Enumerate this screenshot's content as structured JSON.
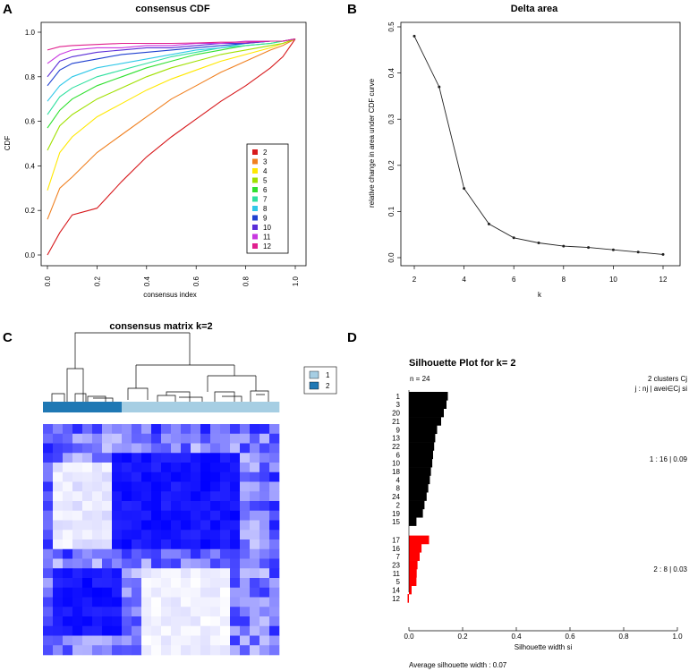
{
  "panels": {
    "A": {
      "label": "A",
      "chart_data": {
        "type": "line",
        "title": "consensus CDF",
        "xlabel": "consensus index",
        "ylabel": "CDF",
        "xlim": [
          0,
          1
        ],
        "ylim": [
          0,
          1
        ],
        "xticks": [
          "0.0",
          "0.2",
          "0.4",
          "0.6",
          "0.8",
          "1.0"
        ],
        "yticks": [
          "0.0",
          "0.2",
          "0.4",
          "0.6",
          "0.8",
          "1.0"
        ],
        "legend_position": "bottom-right",
        "x": [
          0,
          0.05,
          0.1,
          0.2,
          0.3,
          0.4,
          0.5,
          0.6,
          0.7,
          0.8,
          0.9,
          0.95,
          1.0
        ],
        "series": [
          {
            "name": "2",
            "color": "#d7191c",
            "values": [
              0.0,
              0.1,
              0.18,
              0.21,
              0.33,
              0.44,
              0.53,
              0.61,
              0.69,
              0.76,
              0.84,
              0.89,
              0.97
            ]
          },
          {
            "name": "3",
            "color": "#f08020",
            "values": [
              0.16,
              0.3,
              0.35,
              0.46,
              0.54,
              0.62,
              0.7,
              0.76,
              0.82,
              0.87,
              0.92,
              0.94,
              0.97
            ]
          },
          {
            "name": "4",
            "color": "#ffe800",
            "values": [
              0.29,
              0.46,
              0.53,
              0.62,
              0.68,
              0.74,
              0.79,
              0.83,
              0.87,
              0.9,
              0.93,
              0.95,
              0.97
            ]
          },
          {
            "name": "5",
            "color": "#a0e000",
            "values": [
              0.47,
              0.58,
              0.63,
              0.7,
              0.75,
              0.8,
              0.84,
              0.87,
              0.9,
              0.92,
              0.94,
              0.95,
              0.97
            ]
          },
          {
            "name": "6",
            "color": "#30e030",
            "values": [
              0.57,
              0.65,
              0.7,
              0.76,
              0.8,
              0.84,
              0.87,
              0.9,
              0.92,
              0.94,
              0.95,
              0.96,
              0.97
            ]
          },
          {
            "name": "7",
            "color": "#30e0a0",
            "values": [
              0.63,
              0.71,
              0.75,
              0.8,
              0.83,
              0.86,
              0.89,
              0.91,
              0.93,
              0.94,
              0.95,
              0.96,
              0.97
            ]
          },
          {
            "name": "8",
            "color": "#30c8e8",
            "values": [
              0.69,
              0.76,
              0.8,
              0.84,
              0.86,
              0.88,
              0.9,
              0.92,
              0.93,
              0.95,
              0.96,
              0.96,
              0.97
            ]
          },
          {
            "name": "9",
            "color": "#1f40d0",
            "values": [
              0.76,
              0.83,
              0.86,
              0.88,
              0.9,
              0.91,
              0.92,
              0.93,
              0.94,
              0.95,
              0.96,
              0.96,
              0.97
            ]
          },
          {
            "name": "10",
            "color": "#5a2ed8",
            "values": [
              0.8,
              0.87,
              0.89,
              0.91,
              0.92,
              0.93,
              0.93,
              0.94,
              0.95,
              0.95,
              0.96,
              0.96,
              0.97
            ]
          },
          {
            "name": "11",
            "color": "#c838e0",
            "values": [
              0.86,
              0.9,
              0.92,
              0.93,
              0.93,
              0.94,
              0.94,
              0.95,
              0.95,
              0.96,
              0.96,
              0.96,
              0.97
            ]
          },
          {
            "name": "12",
            "color": "#e0208e",
            "values": [
              0.92,
              0.935,
              0.94,
              0.945,
              0.95,
              0.95,
              0.95,
              0.952,
              0.955,
              0.955,
              0.96,
              0.96,
              0.97
            ]
          }
        ]
      }
    },
    "B": {
      "label": "B",
      "chart_data": {
        "type": "line",
        "title": "Delta area",
        "xlabel": "k",
        "ylabel": "relative change in area under CDF curve",
        "xlim": [
          2,
          12
        ],
        "ylim": [
          0,
          0.5
        ],
        "xticks": [
          "2",
          "4",
          "6",
          "8",
          "10",
          "12"
        ],
        "yticks": [
          "0.0",
          "0.1",
          "0.2",
          "0.3",
          "0.4",
          "0.5"
        ],
        "x": [
          2,
          3,
          4,
          5,
          6,
          7,
          8,
          9,
          10,
          11,
          12
        ],
        "values": [
          0.48,
          0.37,
          0.15,
          0.073,
          0.043,
          0.032,
          0.025,
          0.022,
          0.017,
          0.012,
          0.007
        ]
      }
    },
    "C": {
      "label": "C",
      "chart_data": {
        "type": "heatmap",
        "title": "consensus matrix k=2",
        "legend": [
          {
            "label": "1",
            "color": "#a6cee3"
          },
          {
            "label": "2",
            "color": "#1f78b4"
          }
        ],
        "n_samples": 24,
        "cluster_bar": [
          2,
          2,
          2,
          2,
          2,
          2,
          2,
          2,
          1,
          1,
          1,
          1,
          1,
          1,
          1,
          1,
          1,
          1,
          1,
          1,
          1,
          1,
          1,
          1
        ],
        "value_range": [
          0,
          1
        ],
        "low_color": "#ffffff",
        "high_color": "#0000ff"
      }
    },
    "D": {
      "label": "D",
      "chart_data": {
        "type": "bar",
        "orientation": "horizontal",
        "title": "Silhouette Plot for k= 2",
        "n_label": "n = 24",
        "header_line1": "2  clusters  Cj",
        "header_line2": "j :  nj | avei∈Cj  si",
        "xlabel": "Silhouette width si",
        "xlim": [
          0,
          1
        ],
        "xticks": [
          "0.0",
          "0.2",
          "0.4",
          "0.6",
          "0.8",
          "1.0"
        ],
        "footer": "Average silhouette width :  0.07",
        "clusters": [
          {
            "label": "1 :   16  |  0.09",
            "color": "#000000",
            "ids": [
              "1",
              "3",
              "20",
              "21",
              "9",
              "13",
              "22",
              "6",
              "10",
              "18",
              "4",
              "8",
              "24",
              "2",
              "19",
              "15"
            ],
            "values": [
              0.145,
              0.14,
              0.13,
              0.12,
              0.105,
              0.098,
              0.094,
              0.09,
              0.087,
              0.082,
              0.078,
              0.072,
              0.066,
              0.058,
              0.052,
              0.028
            ]
          },
          {
            "label": "2 :   8  |  0.03",
            "color": "#ff0000",
            "ids": [
              "17",
              "16",
              "7",
              "23",
              "11",
              "5",
              "14",
              "12"
            ],
            "values": [
              0.075,
              0.047,
              0.04,
              0.032,
              0.029,
              0.028,
              0.01,
              -0.005
            ]
          }
        ]
      }
    }
  }
}
